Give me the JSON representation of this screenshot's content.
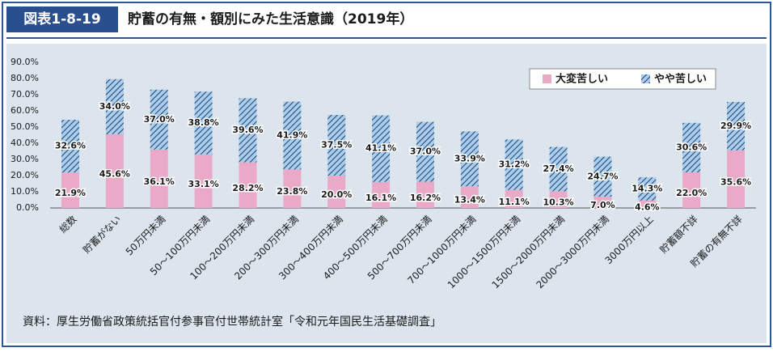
{
  "chart_data": {
    "type": "stacked_bar",
    "figure_label": "図表1-8-19",
    "title": "貯蓄の有無・額別にみた生活意識（2019年）",
    "categories": [
      "総数",
      "貯蓄がない",
      "50万円未満",
      "50～100万円未満",
      "100～200万円未満",
      "200～300万円未満",
      "300～400万円未満",
      "400～500万円未満",
      "500～700万円未満",
      "700～1000万円未満",
      "1000～1500万円未満",
      "1500～2000万円未満",
      "2000～3000万円未満",
      "3000万円以上",
      "貯蓄額不詳",
      "貯蓄の有無不詳"
    ],
    "series": [
      {
        "name": "大変苦しい",
        "color": "#eaa9c6",
        "values": [
          21.9,
          45.6,
          36.1,
          33.1,
          28.2,
          23.8,
          20.0,
          16.1,
          16.2,
          13.4,
          11.1,
          10.3,
          7.0,
          4.6,
          22.0,
          35.6
        ],
        "value_labels": [
          "21.9%",
          "45.6%",
          "36.1%",
          "33.1%",
          "28.2%",
          "23.8%",
          "20.0%",
          "16.1%",
          "16.2%",
          "13.4%",
          "11.1%",
          "10.3%",
          "7.0%",
          "4.6%",
          "22.0%",
          "35.6%"
        ]
      },
      {
        "name": "やや苦しい",
        "color": "#a9cdea",
        "pattern": "hatch",
        "values": [
          32.6,
          34.0,
          37.0,
          38.8,
          39.6,
          41.9,
          37.5,
          41.1,
          37.0,
          33.9,
          31.2,
          27.4,
          24.7,
          14.3,
          30.6,
          29.9
        ],
        "value_labels": [
          "32.6%",
          "34.0%",
          "37.0%",
          "38.8%",
          "39.6%",
          "41.9%",
          "37.5%",
          "41.1%",
          "37.0%",
          "33.9%",
          "31.2%",
          "27.4%",
          "24.7%",
          "14.3%",
          "30.6%",
          "29.9%"
        ]
      }
    ],
    "ylim": [
      0,
      90
    ],
    "yticks": [
      {
        "value": 0,
        "label": "0.0%"
      },
      {
        "value": 10,
        "label": "10.0%"
      },
      {
        "value": 20,
        "label": "20.0%"
      },
      {
        "value": 30,
        "label": "30.0%"
      },
      {
        "value": 40,
        "label": "40.0%"
      },
      {
        "value": 50,
        "label": "50.0%"
      },
      {
        "value": 60,
        "label": "60.0%"
      },
      {
        "value": 70,
        "label": "70.0%"
      },
      {
        "value": 80,
        "label": "80.0%"
      },
      {
        "value": 90,
        "label": "90.0%"
      }
    ],
    "grid": false,
    "legend": "upper right",
    "source": "資料：厚生労働省政策統括官付参事官付世帯統計室「令和元年国民生活基礎調査」"
  }
}
